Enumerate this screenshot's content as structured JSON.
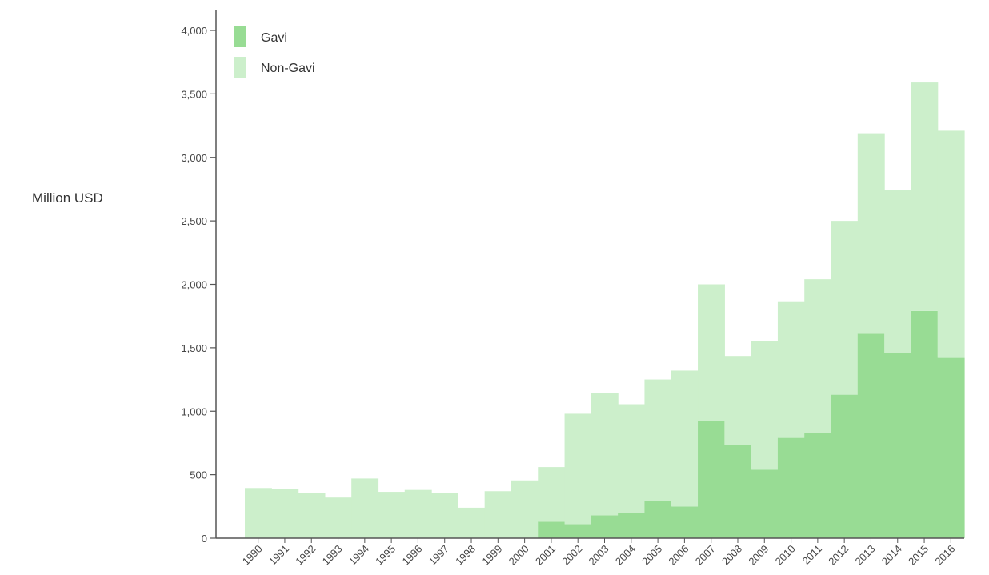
{
  "chart_data": {
    "type": "bar",
    "stacked": true,
    "ylabel": "Million USD",
    "ylim": [
      0,
      4000
    ],
    "yticks": [
      0,
      500,
      1000,
      1500,
      2000,
      2500,
      3000,
      3500,
      4000
    ],
    "ytick_labels": [
      "0",
      "500",
      "1,000",
      "1,500",
      "2,000",
      "2,500",
      "3,000",
      "3,500",
      "4,000"
    ],
    "categories": [
      "1990",
      "1991",
      "1992",
      "1993",
      "1994",
      "1995",
      "1996",
      "1997",
      "1998",
      "1999",
      "2000",
      "2001",
      "2002",
      "2003",
      "2004",
      "2005",
      "2006",
      "2007",
      "2008",
      "2009",
      "2010",
      "2011",
      "2012",
      "2013",
      "2014",
      "2015",
      "2016"
    ],
    "series": [
      {
        "name": "Gavi",
        "color": "#98dc94",
        "values": [
          0,
          0,
          0,
          0,
          0,
          0,
          0,
          0,
          0,
          0,
          0,
          130,
          110,
          180,
          200,
          295,
          250,
          920,
          735,
          540,
          790,
          830,
          1130,
          1610,
          1460,
          1790,
          1420
        ]
      },
      {
        "name": "Non-Gavi",
        "color": "#ccefcb",
        "values": [
          395,
          390,
          355,
          320,
          470,
          365,
          380,
          355,
          240,
          370,
          455,
          430,
          870,
          960,
          855,
          955,
          1070,
          1080,
          700,
          1010,
          1070,
          1210,
          1370,
          1580,
          1280,
          1800,
          1790
        ]
      }
    ],
    "legend": {
      "position": "top-left",
      "entries": [
        "Gavi",
        "Non-Gavi"
      ]
    }
  }
}
